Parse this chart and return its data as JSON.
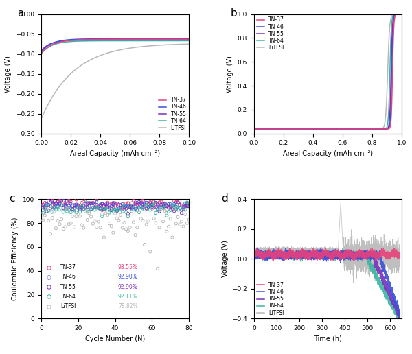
{
  "colors": {
    "TN-37": "#e8417a",
    "TN-46": "#3a50d9",
    "TN-55": "#7b2fbe",
    "TN-64": "#3ab5a0",
    "LiTFSI": "#b8b8b8"
  },
  "panel_a": {
    "title": "a",
    "xlabel": "Areal Capacity (mAh cm⁻²)",
    "ylabel": "Voltage (V)",
    "xlim": [
      0,
      0.1
    ],
    "ylim": [
      -0.3,
      0.0
    ],
    "xticks": [
      0.0,
      0.02,
      0.04,
      0.06,
      0.08,
      0.1
    ],
    "yticks": [
      0.0,
      -0.05,
      -0.1,
      -0.15,
      -0.2,
      -0.25,
      -0.3
    ]
  },
  "panel_b": {
    "title": "b",
    "xlabel": "Areal Capacity (mAh cm⁻²)",
    "ylabel": "Voltage (V)",
    "xlim": [
      0,
      1.0
    ],
    "ylim": [
      0,
      1.0
    ],
    "xticks": [
      0.0,
      0.2,
      0.4,
      0.6,
      0.8,
      1.0
    ],
    "yticks": [
      0.0,
      0.2,
      0.4,
      0.6,
      0.8,
      1.0
    ]
  },
  "panel_c": {
    "title": "c",
    "xlabel": "Cycle Number (N)",
    "ylabel": "Coulombic Efficiency (%)",
    "xlim": [
      0,
      80
    ],
    "ylim": [
      0,
      100
    ],
    "xticks": [
      0,
      20,
      40,
      60,
      80
    ],
    "yticks": [
      0,
      20,
      40,
      60,
      80,
      100
    ],
    "legend_pcts": {
      "TN-37": "93.55%",
      "TN-46": "92.90%",
      "TN-55": "92.90%",
      "TN-64": "92.11%",
      "LiTFSI": "78.82%"
    }
  },
  "panel_d": {
    "title": "d",
    "xlabel": "Time (h)",
    "ylabel": "Voltage (V)",
    "xlim": [
      0,
      650
    ],
    "ylim": [
      -0.4,
      0.4
    ],
    "xticks": [
      0,
      100,
      200,
      300,
      400,
      500,
      600
    ],
    "yticks": [
      -0.4,
      -0.2,
      0.0,
      0.2,
      0.4
    ]
  }
}
